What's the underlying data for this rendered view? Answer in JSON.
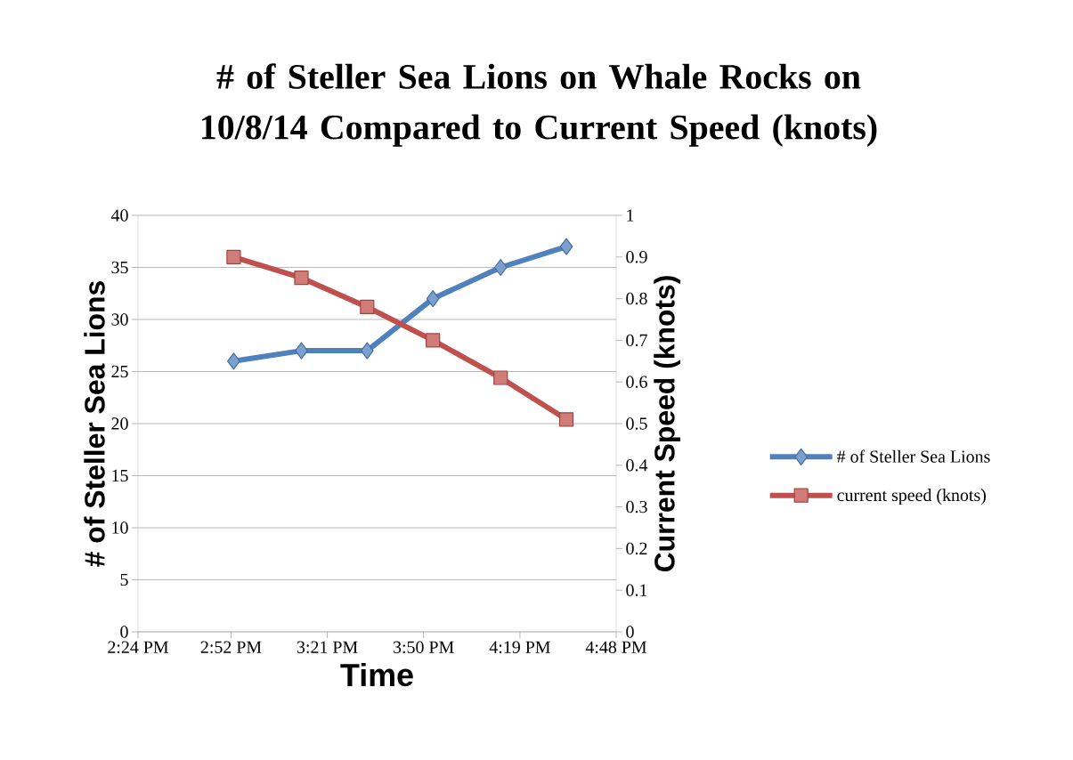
{
  "chart_data": {
    "type": "line",
    "title": "# of Steller Sea Lions on Whale Rocks on 10/8/14 Compared to Current Speed (knots)",
    "xlabel": "Time",
    "ylabel": "# of Steller Sea Lions",
    "y2label": "Current Speed (knots)",
    "x": [
      14.88,
      15.22,
      15.55,
      15.88,
      16.22,
      16.55
    ],
    "series": [
      {
        "name": "# of Steller Sea Lions",
        "color": "#4f81bd",
        "marker": "diamond",
        "values": [
          26,
          27,
          27,
          32,
          35,
          37
        ]
      },
      {
        "name": "current speed (knots)",
        "color": "#c0504d",
        "marker": "square",
        "axis": "y2",
        "values": [
          0.9,
          0.85,
          0.78,
          0.7,
          0.61,
          0.51
        ]
      }
    ],
    "xlim": [
      14.4,
      16.8
    ],
    "xticks": [
      {
        "value": 14.4,
        "label": "2:24 PM"
      },
      {
        "value": 14.867,
        "label": "2:52 PM"
      },
      {
        "value": 15.35,
        "label": "3:21 PM"
      },
      {
        "value": 15.833,
        "label": "3:50 PM"
      },
      {
        "value": 16.317,
        "label": "4:19 PM"
      },
      {
        "value": 16.8,
        "label": "4:48 PM"
      }
    ],
    "ylim": [
      0,
      40
    ],
    "yticks": [
      0,
      5,
      10,
      15,
      20,
      25,
      30,
      35,
      40
    ],
    "y2lim": [
      0,
      1
    ],
    "y2ticks": [
      0,
      0.1,
      0.2,
      0.3,
      0.4,
      0.5,
      0.6,
      0.7,
      0.8,
      0.9,
      1
    ],
    "grid": "y",
    "legend": "right"
  }
}
